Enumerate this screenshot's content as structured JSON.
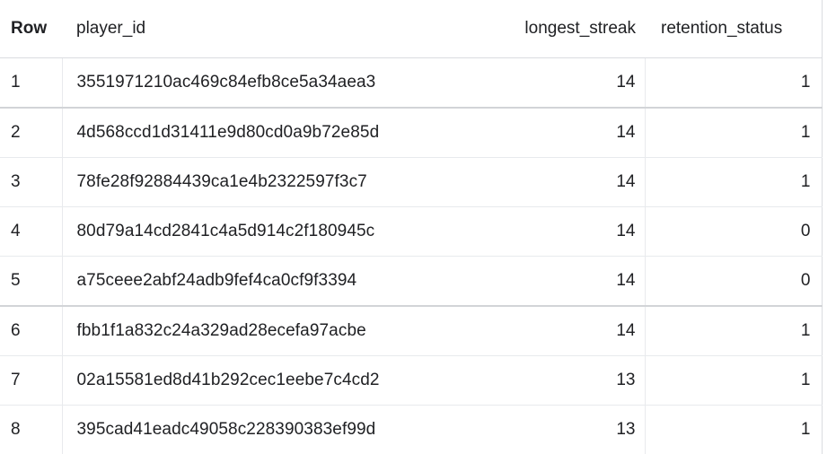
{
  "table": {
    "columns": [
      "Row",
      "player_id",
      "longest_streak",
      "retention_status"
    ],
    "rows": [
      {
        "row": "1",
        "player_id": "3551971210ac469c84efb8ce5a34aea3",
        "longest_streak": "14",
        "retention_status": "1"
      },
      {
        "row": "2",
        "player_id": "4d568ccd1d31411e9d80cd0a9b72e85d",
        "longest_streak": "14",
        "retention_status": "1"
      },
      {
        "row": "3",
        "player_id": "78fe28f92884439ca1e4b2322597f3c7",
        "longest_streak": "14",
        "retention_status": "1"
      },
      {
        "row": "4",
        "player_id": "80d79a14cd2841c4a5d914c2f180945c",
        "longest_streak": "14",
        "retention_status": "0"
      },
      {
        "row": "5",
        "player_id": "a75ceee2abf24adb9fef4ca0cf9f3394",
        "longest_streak": "14",
        "retention_status": "0"
      },
      {
        "row": "6",
        "player_id": "fbb1f1a832c24a329ad28ecefa97acbe",
        "longest_streak": "14",
        "retention_status": "1"
      },
      {
        "row": "7",
        "player_id": "02a15581ed8d41b292cec1eebe7c4cd2",
        "longest_streak": "13",
        "retention_status": "1"
      },
      {
        "row": "8",
        "player_id": "395cad41eadc49058c228390383ef99d",
        "longest_streak": "13",
        "retention_status": "1"
      }
    ]
  }
}
